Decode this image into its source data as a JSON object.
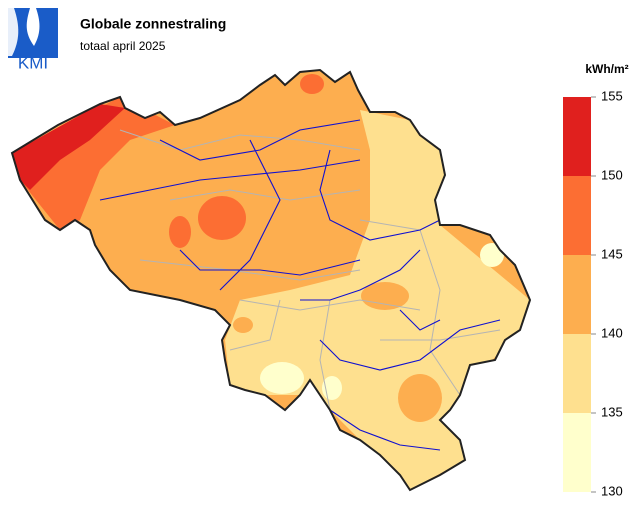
{
  "logo": "KMI",
  "header": {
    "title": "Globale zonnestraling",
    "subtitle": "totaal april 2025"
  },
  "legend": {
    "unit": "kWh/m²",
    "bins": [
      130,
      135,
      140,
      145,
      150,
      155
    ],
    "colors": [
      "#ffffcc",
      "#fee08f",
      "#fdae4f",
      "#fc6e33",
      "#e0201e"
    ]
  }
}
